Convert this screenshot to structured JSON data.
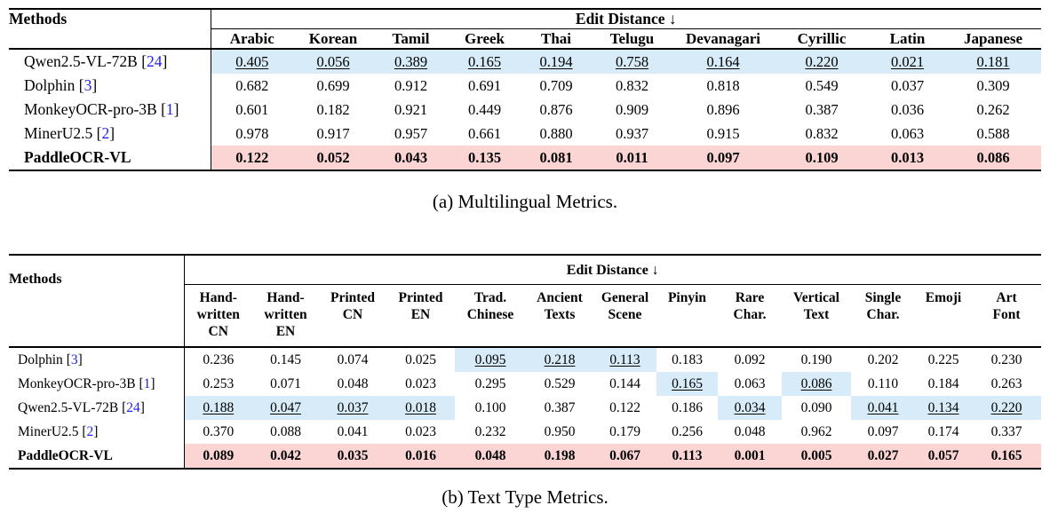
{
  "colors": {
    "highlight_blue": "#D7EBF8",
    "highlight_pink": "#FBD4D4",
    "citation_blue": "#2222EE"
  },
  "tables": [
    {
      "id": "multilingual",
      "caption": "(a) Multilingual Metrics.",
      "methods_header": "Methods",
      "group_header": "Edit Distance ↓",
      "columns": [
        "Arabic",
        "Korean",
        "Tamil",
        "Greek",
        "Thai",
        "Telugu",
        "Devanagari",
        "Cyrillic",
        "Latin",
        "Japanese"
      ],
      "rows": [
        {
          "method": "Qwen2.5-VL-72B",
          "citation": "24",
          "row_bg": "blue",
          "bold": false,
          "underline_cols": [
            0,
            1,
            2,
            3,
            4,
            5,
            6,
            7,
            8,
            9
          ],
          "blue_cols": [],
          "values": [
            "0.405",
            "0.056",
            "0.389",
            "0.165",
            "0.194",
            "0.758",
            "0.164",
            "0.220",
            "0.021",
            "0.181"
          ]
        },
        {
          "method": "Dolphin",
          "citation": "3",
          "row_bg": null,
          "bold": false,
          "underline_cols": [],
          "blue_cols": [],
          "values": [
            "0.682",
            "0.699",
            "0.912",
            "0.691",
            "0.709",
            "0.832",
            "0.818",
            "0.549",
            "0.037",
            "0.309"
          ]
        },
        {
          "method": "MonkeyOCR-pro-3B",
          "citation": "1",
          "row_bg": null,
          "bold": false,
          "underline_cols": [],
          "blue_cols": [],
          "values": [
            "0.601",
            "0.182",
            "0.921",
            "0.449",
            "0.876",
            "0.909",
            "0.896",
            "0.387",
            "0.036",
            "0.262"
          ]
        },
        {
          "method": "MinerU2.5",
          "citation": "2",
          "row_bg": null,
          "bold": false,
          "underline_cols": [],
          "blue_cols": [],
          "values": [
            "0.978",
            "0.917",
            "0.957",
            "0.661",
            "0.880",
            "0.937",
            "0.915",
            "0.832",
            "0.063",
            "0.588"
          ]
        },
        {
          "method": "PaddleOCR-VL",
          "citation": null,
          "row_bg": "pink",
          "bold": true,
          "underline_cols": [],
          "blue_cols": [],
          "values": [
            "0.122",
            "0.052",
            "0.043",
            "0.135",
            "0.081",
            "0.011",
            "0.097",
            "0.109",
            "0.013",
            "0.086"
          ]
        }
      ]
    },
    {
      "id": "texttype",
      "caption": "(b) Text Type Metrics.",
      "methods_header": "Methods",
      "group_header": "Edit Distance ↓",
      "columns": [
        "Hand-\nwritten\nCN",
        "Hand-\nwritten\nEN",
        "Printed\nCN",
        "Printed\nEN",
        "Trad.\nChinese",
        "Ancient\nTexts",
        "General\nScene",
        "Pinyin",
        "Rare\nChar.",
        "Vertical\nText",
        "Single\nChar.",
        "Emoji",
        "Art\nFont"
      ],
      "rows": [
        {
          "method": "Dolphin",
          "citation": "3",
          "row_bg": null,
          "bold": false,
          "underline_cols": [
            4,
            5,
            6
          ],
          "blue_cols": [
            4,
            5,
            6
          ],
          "values": [
            "0.236",
            "0.145",
            "0.074",
            "0.025",
            "0.095",
            "0.218",
            "0.113",
            "0.183",
            "0.092",
            "0.190",
            "0.202",
            "0.225",
            "0.230"
          ]
        },
        {
          "method": "MonkeyOCR-pro-3B",
          "citation": "1",
          "row_bg": null,
          "bold": false,
          "underline_cols": [
            7,
            9
          ],
          "blue_cols": [
            7,
            9
          ],
          "values": [
            "0.253",
            "0.071",
            "0.048",
            "0.023",
            "0.295",
            "0.529",
            "0.144",
            "0.165",
            "0.063",
            "0.086",
            "0.110",
            "0.184",
            "0.263"
          ]
        },
        {
          "method": "Qwen2.5-VL-72B",
          "citation": "24",
          "row_bg": null,
          "bold": false,
          "underline_cols": [
            0,
            1,
            2,
            3,
            8,
            10,
            11,
            12
          ],
          "blue_cols": [
            0,
            1,
            2,
            3,
            8,
            10,
            11,
            12
          ],
          "values": [
            "0.188",
            "0.047",
            "0.037",
            "0.018",
            "0.100",
            "0.387",
            "0.122",
            "0.186",
            "0.034",
            "0.090",
            "0.041",
            "0.134",
            "0.220"
          ]
        },
        {
          "method": "MinerU2.5",
          "citation": "2",
          "row_bg": null,
          "bold": false,
          "underline_cols": [],
          "blue_cols": [],
          "values": [
            "0.370",
            "0.088",
            "0.041",
            "0.023",
            "0.232",
            "0.950",
            "0.179",
            "0.256",
            "0.048",
            "0.962",
            "0.097",
            "0.174",
            "0.337"
          ]
        },
        {
          "method": "PaddleOCR-VL",
          "citation": null,
          "row_bg": "pink",
          "bold": true,
          "underline_cols": [],
          "blue_cols": [],
          "values": [
            "0.089",
            "0.042",
            "0.035",
            "0.016",
            "0.048",
            "0.198",
            "0.067",
            "0.113",
            "0.001",
            "0.005",
            "0.027",
            "0.057",
            "0.165"
          ]
        }
      ]
    }
  ]
}
